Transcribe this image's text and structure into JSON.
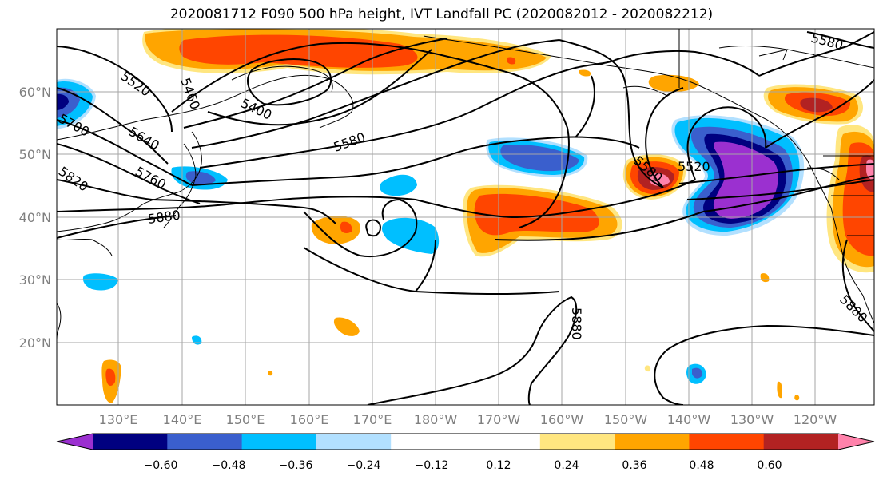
{
  "title": "2020081712 F090 500 hPa height, IVT Landfall PC (2020082012 - 2020082212)",
  "lat_labels": [
    "60°N",
    "50°N",
    "40°N",
    "30°N",
    "20°N"
  ],
  "lon_labels": [
    "130°E",
    "140°E",
    "150°E",
    "160°E",
    "170°E",
    "180°W",
    "170°W",
    "160°W",
    "150°W",
    "140°W",
    "130°W",
    "120°W"
  ],
  "colorbar": {
    "colors": [
      "#9b30d0",
      "#000080",
      "#3a5fcd",
      "#00bfff",
      "#b2e0ff",
      "#ffffff",
      "#ffffff",
      "#ffe680",
      "#ffa500",
      "#ff4500",
      "#b22222",
      "#ff82ab"
    ],
    "tick_labels": [
      "−0.60",
      "−0.48",
      "−0.36",
      "−0.24",
      "−0.12",
      "0.12",
      "0.24",
      "0.36",
      "0.48",
      "0.60"
    ]
  },
  "height_contour_labels": [
    "5520",
    "5460",
    "5400",
    "5580",
    "5700",
    "5640",
    "5760",
    "5820",
    "5880",
    "5580",
    "5520",
    "5580",
    "5880",
    "5880"
  ]
}
